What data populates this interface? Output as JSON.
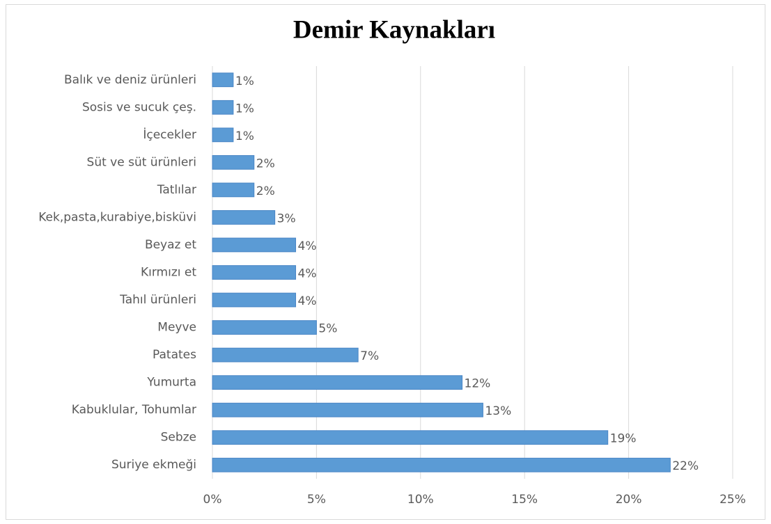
{
  "chart_data": {
    "type": "barh",
    "title": "Demir Kaynakları",
    "categories": [
      "Balık ve deniz ürünleri",
      "Sosis ve sucuk çeş.",
      "İçecekler",
      "Süt ve süt ürünleri",
      "Tatlılar",
      "Kek,pasta,kurabiye,bisküvi",
      "Beyaz et",
      "Kırmızı et",
      "Tahıl ürünleri",
      "Meyve",
      "Patates",
      "Yumurta",
      "Kabuklular, Tohumlar",
      "Sebze",
      "Suriye ekmeği"
    ],
    "values": [
      1,
      1,
      1,
      2,
      2,
      3,
      4,
      4,
      4,
      5,
      7,
      12,
      13,
      19,
      22
    ],
    "value_labels": [
      "1%",
      "1%",
      "1%",
      "2%",
      "2%",
      "3%",
      "4%",
      "4%",
      "4%",
      "5%",
      "7%",
      "12%",
      "13%",
      "19%",
      "22%"
    ],
    "color": "#5b9bd5",
    "xlim": [
      0,
      25
    ],
    "xticks": [
      {
        "value": 0,
        "label": "0%"
      },
      {
        "value": 5,
        "label": "5%"
      },
      {
        "value": 10,
        "label": "10%"
      },
      {
        "value": 15,
        "label": "15%"
      },
      {
        "value": 20,
        "label": "20%"
      },
      {
        "value": 25,
        "label": "25%"
      }
    ],
    "grid": true
  }
}
